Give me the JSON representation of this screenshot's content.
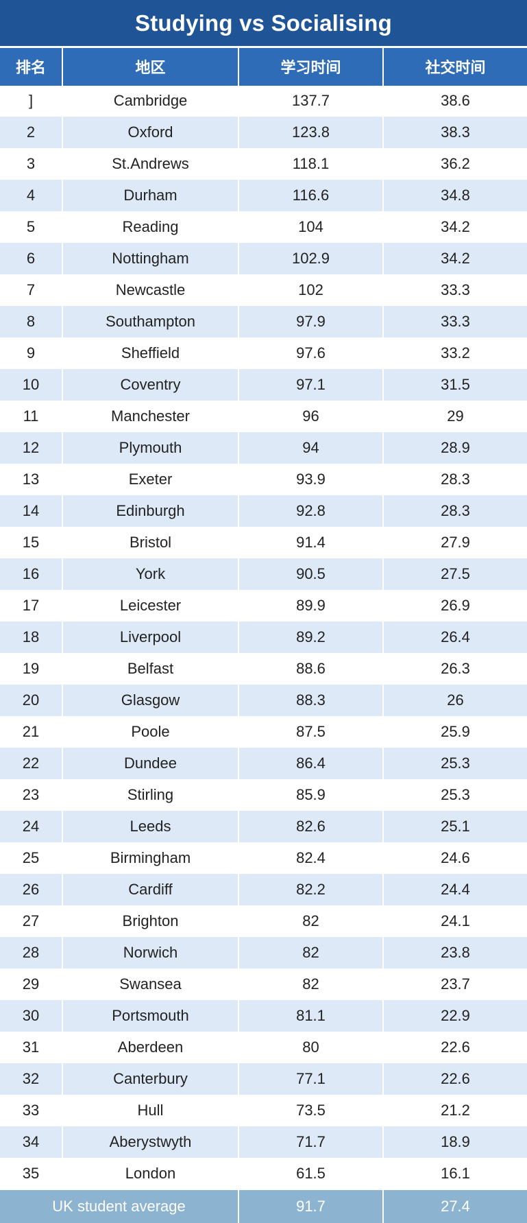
{
  "title": "Studying vs Socialising",
  "headers": [
    "排名",
    "地区",
    "学习时间",
    "社交时间"
  ],
  "rows": [
    [
      "]",
      "Cambridge",
      "137.7",
      "38.6"
    ],
    [
      "2",
      "Oxford",
      "123.8",
      "38.3"
    ],
    [
      "3",
      "St.Andrews",
      "118.1",
      "36.2"
    ],
    [
      "4",
      "Durham",
      "116.6",
      "34.8"
    ],
    [
      "5",
      "Reading",
      "104",
      "34.2"
    ],
    [
      "6",
      "Nottingham",
      "102.9",
      "34.2"
    ],
    [
      "7",
      "Newcastle",
      "102",
      "33.3"
    ],
    [
      "8",
      "Southampton",
      "97.9",
      "33.3"
    ],
    [
      "9",
      "Sheffield",
      "97.6",
      "33.2"
    ],
    [
      "10",
      "Coventry",
      "97.1",
      "31.5"
    ],
    [
      "11",
      "Manchester",
      "96",
      "29"
    ],
    [
      "12",
      "Plymouth",
      "94",
      "28.9"
    ],
    [
      "13",
      "Exeter",
      "93.9",
      "28.3"
    ],
    [
      "14",
      "Edinburgh",
      "92.8",
      "28.3"
    ],
    [
      "15",
      "Bristol",
      "91.4",
      "27.9"
    ],
    [
      "16",
      "York",
      "90.5",
      "27.5"
    ],
    [
      "17",
      "Leicester",
      "89.9",
      "26.9"
    ],
    [
      "18",
      "Liverpool",
      "89.2",
      "26.4"
    ],
    [
      "19",
      "Belfast",
      "88.6",
      "26.3"
    ],
    [
      "20",
      "Glasgow",
      "88.3",
      "26"
    ],
    [
      "21",
      "Poole",
      "87.5",
      "25.9"
    ],
    [
      "22",
      "Dundee",
      "86.4",
      "25.3"
    ],
    [
      "23",
      "Stirling",
      "85.9",
      "25.3"
    ],
    [
      "24",
      "Leeds",
      "82.6",
      "25.1"
    ],
    [
      "25",
      "Birmingham",
      "82.4",
      "24.6"
    ],
    [
      "26",
      "Cardiff",
      "82.2",
      "24.4"
    ],
    [
      "27",
      "Brighton",
      "82",
      "24.1"
    ],
    [
      "28",
      "Norwich",
      "82",
      "23.8"
    ],
    [
      "29",
      "Swansea",
      "82",
      "23.7"
    ],
    [
      "30",
      "Portsmouth",
      "81.1",
      "22.9"
    ],
    [
      "31",
      "Aberdeen",
      "80",
      "22.6"
    ],
    [
      "32",
      "Canterbury",
      "77.1",
      "22.6"
    ],
    [
      "33",
      "Hull",
      "73.5",
      "21.2"
    ],
    [
      "34",
      "Aberystwyth",
      "71.7",
      "18.9"
    ],
    [
      "35",
      "London",
      "61.5",
      "16.1"
    ]
  ],
  "footer": {
    "label": "UK student average",
    "study": "91.7",
    "social": "27.4"
  },
  "colors": {
    "title_bg": "#1f5597",
    "header_bg": "#2e6cb8",
    "stripe": "#dde9f6",
    "footer_bg": "#8cb3cf"
  }
}
